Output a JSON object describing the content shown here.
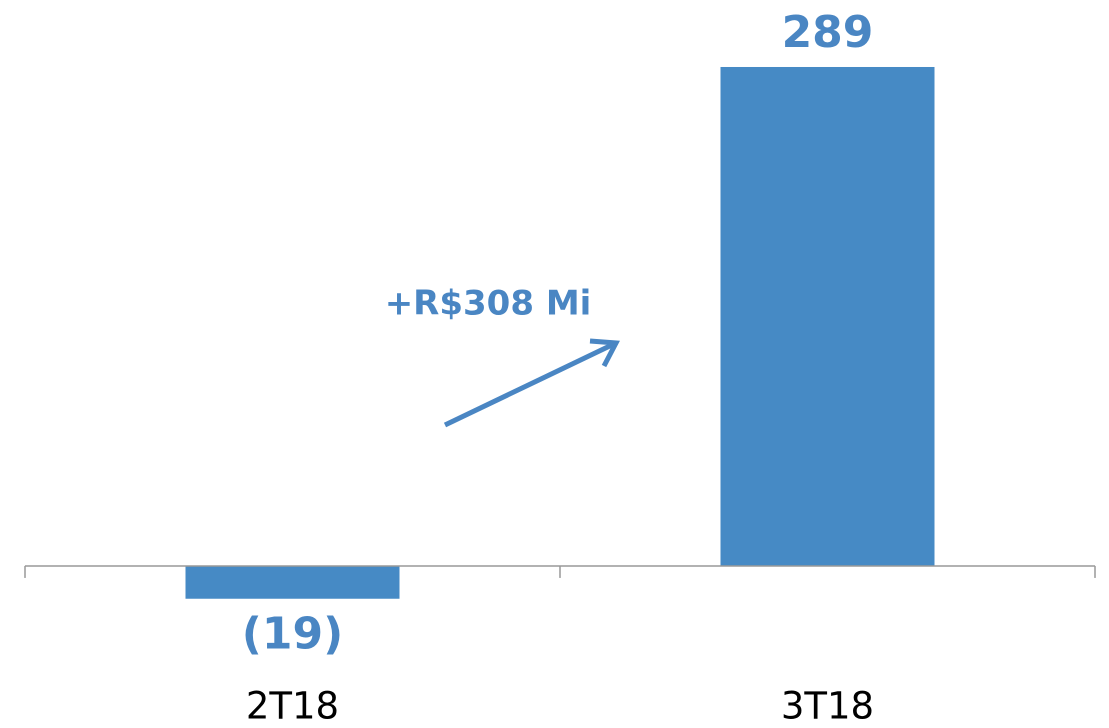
{
  "chart_data": {
    "type": "bar",
    "categories": [
      "2T18",
      "3T18"
    ],
    "values": [
      -19,
      289
    ],
    "value_labels": [
      "(19)",
      "289"
    ],
    "color": "#468ac5",
    "ylim": [
      -40,
      300
    ],
    "annotation": "+R$308 Mi"
  }
}
